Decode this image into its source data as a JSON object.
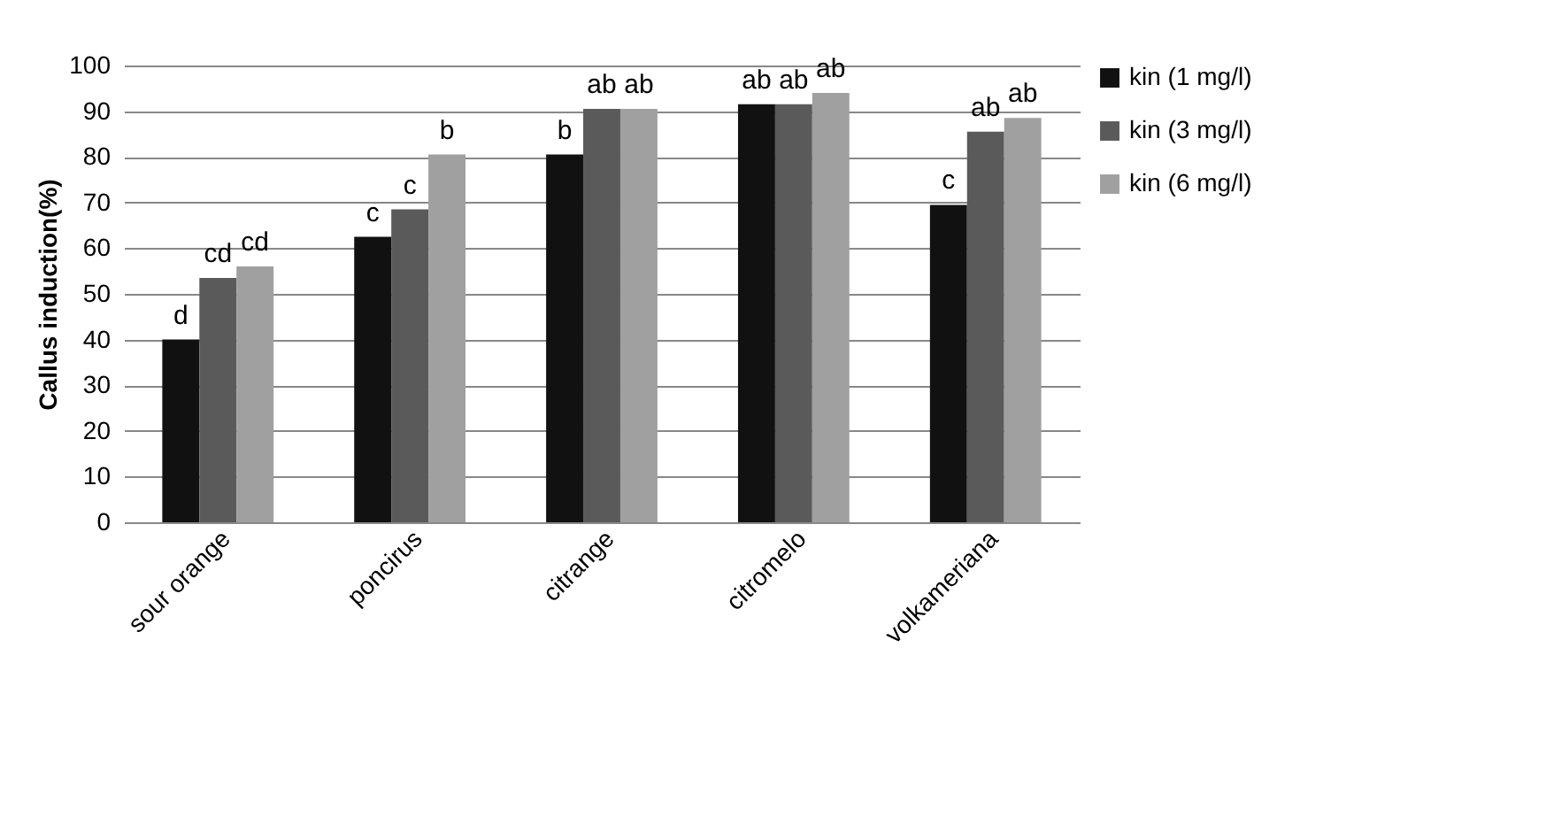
{
  "chart_data": {
    "type": "bar",
    "ylabel": "Callus induction(%)",
    "categories": [
      "sour orange",
      "poncirus",
      "citrange",
      "citromelo",
      "volkameriana"
    ],
    "series": [
      {
        "name": "kin (1 mg/l)",
        "color": "#111111",
        "values": [
          40,
          62.5,
          80.5,
          91.5,
          69.5
        ],
        "value_labels": [
          "d",
          "c",
          "b",
          "ab",
          "c"
        ]
      },
      {
        "name": "kin (3 mg/l)",
        "color": "#5a5a5a",
        "values": [
          53.5,
          68.5,
          90.5,
          91.5,
          85.5
        ],
        "value_labels": [
          "cd",
          "c",
          "ab",
          "ab",
          "ab"
        ]
      },
      {
        "name": "kin (6 mg/l)",
        "color": "#a0a0a0",
        "values": [
          56,
          80.5,
          90.5,
          94,
          88.5
        ],
        "value_labels": [
          "cd",
          "b",
          "ab",
          "ab",
          "ab"
        ]
      }
    ],
    "ylim": [
      0,
      100
    ],
    "yticks": [
      0,
      10,
      20,
      30,
      40,
      50,
      60,
      70,
      80,
      90,
      100
    ],
    "grid": "y",
    "legend": "right"
  }
}
